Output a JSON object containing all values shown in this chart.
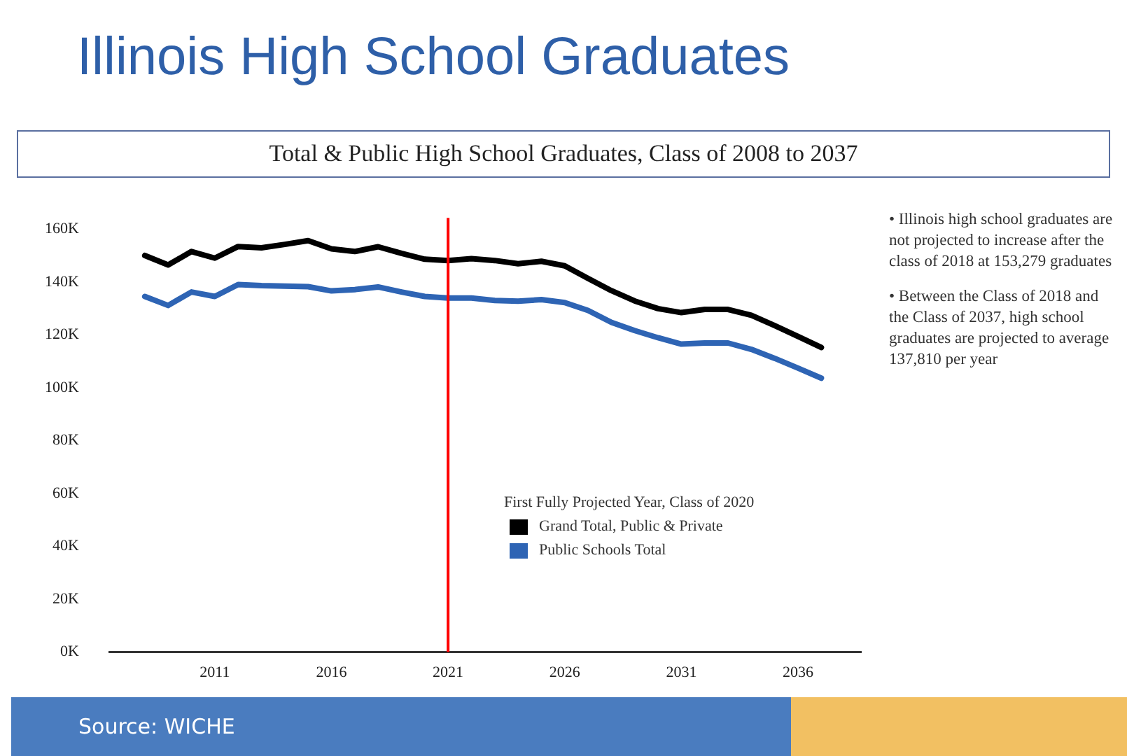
{
  "chart_data": {
    "type": "line",
    "title": "Illinois High School Graduates",
    "subtitle": "Total & Public High School Graduates, Class of 2008 to 2037",
    "legend_title": "First Fully Projected Year, Class of 2020",
    "x": [
      2008,
      2009,
      2010,
      2011,
      2012,
      2013,
      2014,
      2015,
      2016,
      2017,
      2018,
      2019,
      2020,
      2021,
      2022,
      2023,
      2024,
      2025,
      2026,
      2027,
      2028,
      2029,
      2030,
      2031,
      2032,
      2033,
      2034,
      2035,
      2036,
      2037
    ],
    "series": [
      {
        "name": "Grand Total, Public & Private",
        "color": "#000000",
        "values": [
          150.0,
          146.4,
          151.5,
          149.0,
          153.4,
          152.9,
          154.2,
          155.6,
          152.5,
          151.5,
          153.3,
          150.8,
          148.6,
          148.1,
          148.8,
          148.1,
          146.9,
          147.8,
          146.1,
          141.3,
          136.7,
          132.8,
          129.9,
          128.4,
          129.6,
          129.6,
          127.4,
          123.5,
          119.4,
          115.2
        ]
      },
      {
        "name": "Public Schools Total",
        "color": "#2e64b4",
        "values": [
          134.5,
          131.1,
          136.2,
          134.5,
          139.0,
          138.6,
          138.4,
          138.2,
          136.6,
          137.1,
          138.1,
          136.2,
          134.5,
          133.9,
          133.9,
          133.0,
          132.7,
          133.3,
          132.2,
          129.2,
          124.7,
          121.6,
          118.9,
          116.5,
          116.9,
          116.9,
          114.5,
          111.1,
          107.4,
          103.6
        ]
      }
    ],
    "xlim": [
      2006.5,
      2038.7
    ],
    "xticks": [
      2011,
      2016,
      2021,
      2026,
      2031,
      2036
    ],
    "ylim": [
      0,
      160
    ],
    "yticks": [
      {
        "value": 0,
        "label": "0K"
      },
      {
        "value": 20,
        "label": "20K"
      },
      {
        "value": 40,
        "label": "40K"
      },
      {
        "value": 60,
        "label": "60K"
      },
      {
        "value": 80,
        "label": "80K"
      },
      {
        "value": 100,
        "label": "100K"
      },
      {
        "value": 120,
        "label": "120K"
      },
      {
        "value": 140,
        "label": "140K"
      },
      {
        "value": 160,
        "label": "160K"
      }
    ],
    "ref_lines": [
      {
        "axis": "x",
        "value": 2021,
        "color": "#ff0000"
      }
    ],
    "grid": false,
    "legend": "bottom right",
    "marker": "none",
    "line_style": "solid",
    "annotations": [
      "• Illinois high school graduates are not projected to increase after the class of 2018 at 153,279 graduates",
      "• Between the Class of 2018 and the Class of 2037, high school graduates are projected to average 137,810 per year",
      "Source: WICHE"
    ]
  }
}
